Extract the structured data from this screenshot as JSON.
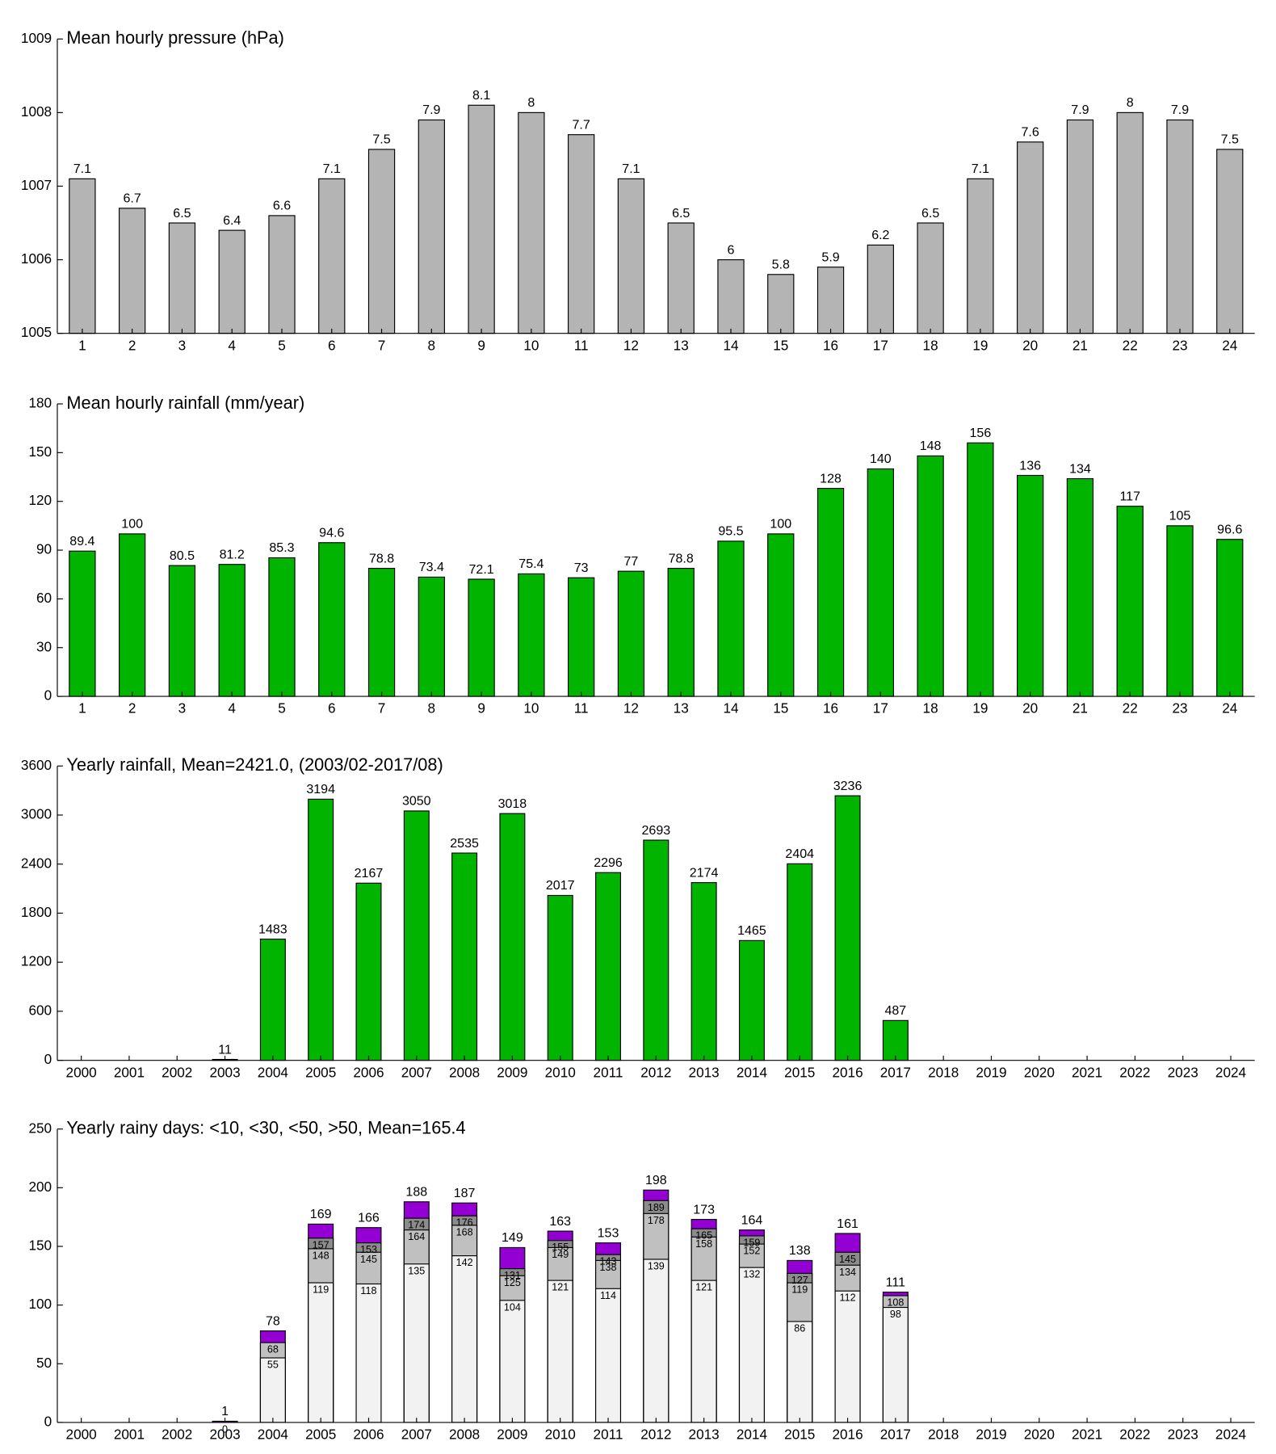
{
  "chart_data": [
    {
      "type": "bar",
      "title": "Mean hourly pressure (hPa)",
      "categories": [
        "1",
        "2",
        "3",
        "4",
        "5",
        "6",
        "7",
        "8",
        "9",
        "10",
        "11",
        "12",
        "13",
        "14",
        "15",
        "16",
        "17",
        "18",
        "19",
        "20",
        "21",
        "22",
        "23",
        "24"
      ],
      "values": [
        1007.1,
        1006.7,
        1006.5,
        1006.4,
        1006.6,
        1007.1,
        1007.5,
        1007.9,
        1008.1,
        1008,
        1007.7,
        1007.1,
        1006.5,
        1006,
        1005.8,
        1005.9,
        1006.2,
        1006.5,
        1007.1,
        1007.6,
        1007.9,
        1008,
        1007.9,
        1007.5
      ],
      "value_labels": [
        "7.1",
        "6.7",
        "6.5",
        "6.4",
        "6.6",
        "7.1",
        "7.5",
        "7.9",
        "8.1",
        "8",
        "7.7",
        "7.1",
        "6.5",
        "6",
        "5.8",
        "5.9",
        "6.2",
        "6.5",
        "7.1",
        "7.6",
        "7.9",
        "8",
        "7.9",
        "7.5"
      ],
      "color": "#b4b4b4",
      "ylim": [
        1005,
        1009
      ],
      "yticks": [
        1005,
        1006,
        1007,
        1008,
        1009
      ]
    },
    {
      "type": "bar",
      "title": "Mean hourly rainfall (mm/year)",
      "categories": [
        "1",
        "2",
        "3",
        "4",
        "5",
        "6",
        "7",
        "8",
        "9",
        "10",
        "11",
        "12",
        "13",
        "14",
        "15",
        "16",
        "17",
        "18",
        "19",
        "20",
        "21",
        "22",
        "23",
        "24"
      ],
      "values": [
        89.4,
        100,
        80.5,
        81.2,
        85.3,
        94.6,
        78.8,
        73.4,
        72.1,
        75.4,
        73,
        77,
        78.8,
        95.5,
        100,
        128,
        140,
        148,
        156,
        136,
        134,
        117,
        105,
        96.6
      ],
      "color": "#00b400",
      "ylim": [
        0,
        180
      ],
      "yticks": [
        0,
        30,
        60,
        90,
        120,
        150,
        180
      ]
    },
    {
      "type": "bar",
      "title": "Yearly rainfall, Mean=2421.0, (2003/02-2017/08)",
      "categories": [
        "2000",
        "2001",
        "2002",
        "2003",
        "2004",
        "2005",
        "2006",
        "2007",
        "2008",
        "2009",
        "2010",
        "2011",
        "2012",
        "2013",
        "2014",
        "2015",
        "2016",
        "2017",
        "2018",
        "2019",
        "2020",
        "2021",
        "2022",
        "2023",
        "2024"
      ],
      "values": [
        null,
        null,
        null,
        11,
        1483,
        3194,
        2167,
        3050,
        2535,
        3018,
        2017,
        2296,
        2693,
        2174,
        1465,
        2404,
        3236,
        487,
        null,
        null,
        null,
        null,
        null,
        null,
        null
      ],
      "color": "#00b400",
      "ylim": [
        0,
        3600
      ],
      "yticks": [
        0,
        600,
        1200,
        1800,
        2400,
        3000,
        3600
      ]
    },
    {
      "type": "bar",
      "title": "Yearly rainy days: <10, <30, <50, >50, Mean=165.4",
      "overlay": true,
      "categories": [
        "2000",
        "2001",
        "2002",
        "2003",
        "2004",
        "2005",
        "2006",
        "2007",
        "2008",
        "2009",
        "2010",
        "2011",
        "2012",
        "2013",
        "2014",
        "2015",
        "2016",
        "2017",
        "2018",
        "2019",
        "2020",
        "2021",
        "2022",
        "2023",
        "2024"
      ],
      "series": [
        {
          "color": "#f2f2f2",
          "values": [
            null,
            null,
            null,
            0,
            55,
            119,
            118,
            135,
            142,
            104,
            121,
            114,
            139,
            121,
            132,
            86,
            112,
            98,
            null,
            null,
            null,
            null,
            null,
            null,
            null
          ]
        },
        {
          "color": "#c0c0c0",
          "values": [
            null,
            null,
            null,
            null,
            68,
            148,
            145,
            164,
            168,
            125,
            149,
            138,
            178,
            158,
            152,
            119,
            134,
            108,
            null,
            null,
            null,
            null,
            null,
            null,
            null
          ]
        },
        {
          "color": "#8c8c8c",
          "values": [
            null,
            null,
            null,
            null,
            null,
            157,
            153,
            174,
            176,
            131,
            155,
            143,
            189,
            165,
            159,
            127,
            145,
            null,
            null,
            null,
            null,
            null,
            null,
            null,
            null
          ]
        },
        {
          "color": "#9400d3",
          "values": [
            null,
            null,
            null,
            1,
            78,
            169,
            166,
            188,
            187,
            149,
            163,
            153,
            198,
            173,
            164,
            138,
            161,
            111,
            null,
            null,
            null,
            null,
            null,
            null,
            null
          ]
        }
      ],
      "ylim": [
        0,
        250
      ],
      "yticks": [
        0,
        50,
        100,
        150,
        200,
        250
      ]
    }
  ]
}
